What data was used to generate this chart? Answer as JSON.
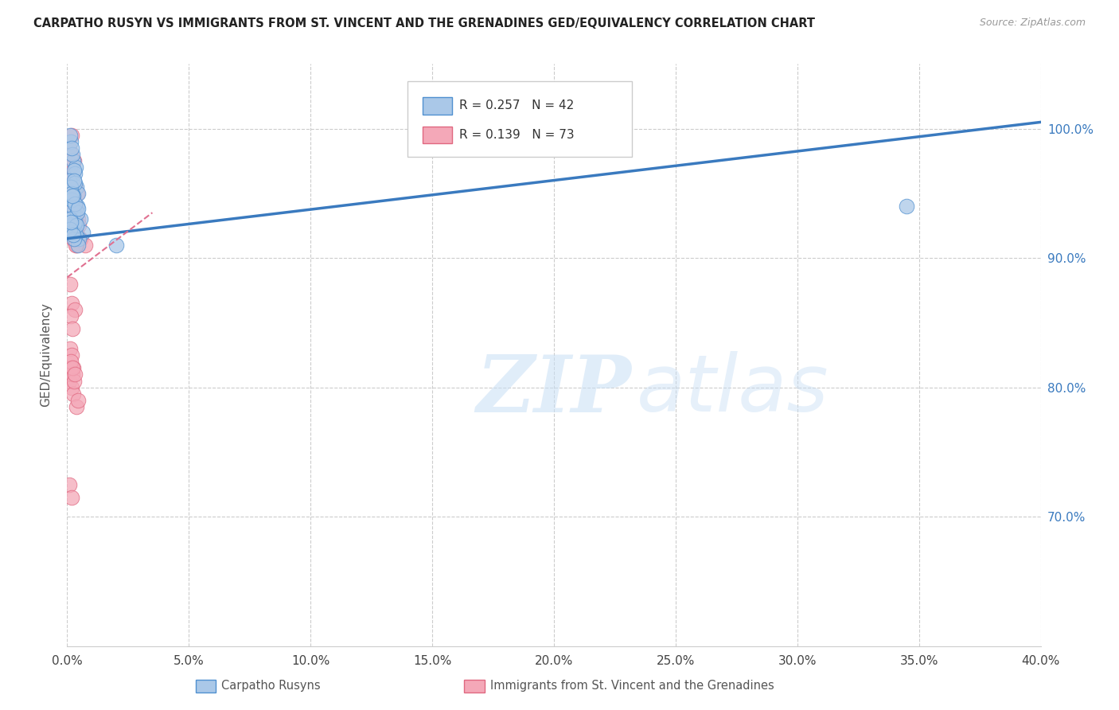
{
  "title": "CARPATHO RUSYN VS IMMIGRANTS FROM ST. VINCENT AND THE GRENADINES GED/EQUIVALENCY CORRELATION CHART",
  "source": "Source: ZipAtlas.com",
  "ylabel": "GED/Equivalency",
  "xlabel_ticks": [
    "0.0%",
    "5.0%",
    "10.0%",
    "15.0%",
    "20.0%",
    "25.0%",
    "30.0%",
    "35.0%",
    "40.0%"
  ],
  "xlabel_vals": [
    0.0,
    5.0,
    10.0,
    15.0,
    20.0,
    25.0,
    30.0,
    35.0,
    40.0
  ],
  "ylabel_ticks": [
    "70.0%",
    "80.0%",
    "90.0%",
    "100.0%"
  ],
  "ylabel_vals": [
    70.0,
    80.0,
    90.0,
    100.0
  ],
  "xlim": [
    0,
    40
  ],
  "ylim": [
    60,
    105
  ],
  "blue_label": "Carpatho Rusyns",
  "pink_label": "Immigrants from St. Vincent and the Grenadines",
  "blue_R": "0.257",
  "blue_N": "42",
  "pink_R": "0.139",
  "pink_N": "73",
  "blue_color": "#aac8e8",
  "pink_color": "#f4a8b8",
  "blue_edge_color": "#5090d0",
  "pink_edge_color": "#e06880",
  "blue_line_color": "#3a7abf",
  "pink_line_color": "#e07090",
  "blue_scatter_x": [
    0.15,
    0.25,
    0.35,
    0.12,
    0.22,
    0.3,
    0.18,
    0.28,
    0.38,
    0.45,
    0.1,
    0.2,
    0.32,
    0.42,
    0.26,
    0.55,
    0.65,
    0.14,
    0.24,
    0.48,
    0.16,
    0.27,
    0.36,
    0.44,
    0.21,
    0.31,
    0.4,
    0.13,
    0.23,
    0.17,
    0.29,
    0.37,
    2.0,
    0.19,
    0.33,
    0.43,
    0.11,
    0.25,
    0.16,
    34.5,
    0.28,
    0.22
  ],
  "blue_scatter_y": [
    99.0,
    97.5,
    97.0,
    99.5,
    98.0,
    96.5,
    98.5,
    96.8,
    95.5,
    95.0,
    96.0,
    94.5,
    95.8,
    94.0,
    93.5,
    93.0,
    92.0,
    95.5,
    94.8,
    91.5,
    93.0,
    92.5,
    91.8,
    91.0,
    94.0,
    92.8,
    93.5,
    93.0,
    92.0,
    94.5,
    91.5,
    92.5,
    91.0,
    95.0,
    94.2,
    93.8,
    92.2,
    91.8,
    92.8,
    94.0,
    96.0,
    94.8
  ],
  "pink_scatter_x": [
    0.1,
    0.18,
    0.28,
    0.14,
    0.22,
    0.32,
    0.4,
    0.11,
    0.19,
    0.25,
    0.36,
    0.13,
    0.21,
    0.3,
    0.08,
    0.17,
    0.26,
    0.44,
    0.15,
    0.23,
    0.33,
    0.48,
    0.12,
    0.2,
    0.29,
    0.38,
    0.14,
    0.22,
    0.27,
    0.55,
    0.75,
    0.12,
    0.19,
    0.3,
    0.16,
    0.24,
    0.34,
    0.11,
    0.18,
    0.26,
    0.4,
    0.15,
    0.23,
    0.31,
    0.12,
    0.18,
    0.26,
    0.37,
    0.14,
    0.22,
    0.34,
    0.11,
    0.19,
    0.3,
    0.15,
    0.22,
    0.1,
    0.18,
    0.25,
    0.37,
    0.14,
    0.22,
    0.29,
    0.44,
    0.11,
    0.19,
    0.26,
    0.14,
    0.22,
    0.33,
    0.1,
    0.18,
    0.3
  ],
  "pink_scatter_y": [
    98.5,
    99.5,
    97.5,
    98.0,
    96.5,
    95.5,
    95.0,
    97.0,
    96.0,
    94.5,
    94.0,
    95.5,
    94.0,
    93.5,
    96.5,
    95.0,
    94.5,
    93.0,
    94.8,
    93.5,
    93.0,
    92.5,
    95.2,
    94.0,
    93.0,
    92.0,
    94.0,
    93.0,
    92.5,
    91.5,
    91.0,
    94.5,
    93.5,
    92.5,
    93.5,
    92.8,
    92.0,
    94.0,
    93.0,
    92.0,
    91.5,
    93.0,
    92.5,
    91.8,
    92.5,
    92.0,
    91.5,
    91.0,
    92.0,
    91.5,
    91.0,
    88.0,
    86.5,
    86.0,
    85.5,
    84.5,
    80.5,
    80.0,
    79.5,
    78.5,
    81.5,
    81.0,
    80.5,
    79.0,
    83.0,
    82.5,
    81.5,
    82.0,
    81.5,
    81.0,
    72.5,
    71.5,
    93.0
  ],
  "blue_line_x0": 0,
  "blue_line_y0": 91.5,
  "blue_line_x1": 40,
  "blue_line_y1": 100.5,
  "pink_line_x0": 0,
  "pink_line_y0": 88.5,
  "pink_line_x1": 3.5,
  "pink_line_y1": 93.5
}
